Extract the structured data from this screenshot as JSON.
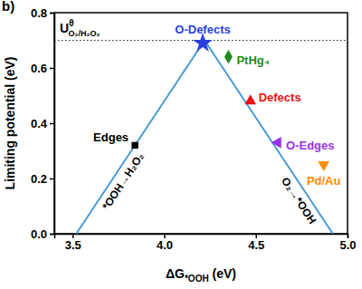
{
  "chart_data": {
    "type": "scatter",
    "panel_label": "b)",
    "x_label": [
      {
        "text": "ΔG"
      },
      {
        "text": "*OOH",
        "sub": true
      },
      {
        "text": " (eV)"
      }
    ],
    "y_label": "Limiting potential (eV)",
    "xlim": [
      3.4,
      5.0
    ],
    "ylim": [
      0,
      0.8
    ],
    "xticks": [
      3.5,
      {
        "value": 4,
        "label": "4.0"
      },
      4.5,
      {
        "value": 5,
        "label": "5.0"
      }
    ],
    "yticks": [
      {
        "value": 0,
        "label": "0.0"
      },
      0.2,
      0.4,
      0.6,
      0.8
    ],
    "hline": {
      "value": 0.7,
      "line_style": "dotted",
      "color": "#222222",
      "label": [
        {
          "text": "U"
        },
        {
          "text": "θ",
          "sup": true
        },
        {
          "text": "O₂/H₂O₂",
          "sub": true
        }
      ]
    },
    "series": [
      {
        "type": "line",
        "color": "#4a9bd4",
        "x": [
          3.52,
          4.22,
          4.92
        ],
        "values": [
          0,
          0.7,
          0
        ],
        "segment_labels": [
          "*OOH→H₂O₂",
          "O₂→*OOH"
        ]
      },
      {
        "name": "O-Defects",
        "type": "scatter",
        "color": "#2b3fe0",
        "marker": "star",
        "x": [
          4.21
        ],
        "values": [
          0.69
        ]
      },
      {
        "name": "PtHg₄",
        "type": "scatter",
        "color": "#1e8c1e",
        "marker": "diamond",
        "x": [
          4.35
        ],
        "values": [
          0.64
        ]
      },
      {
        "name": "Defects",
        "type": "scatter",
        "color": "#ee1111",
        "marker": "triangle-up",
        "x": [
          4.47
        ],
        "values": [
          0.48
        ]
      },
      {
        "name": "O-Edges",
        "type": "scatter",
        "color": "#9b30e8",
        "marker": "triangle-left",
        "x": [
          4.62
        ],
        "values": [
          0.33
        ]
      },
      {
        "name": "Pd/Au",
        "type": "scatter",
        "color": "#ff8c00",
        "marker": "triangle-down",
        "x": [
          4.87
        ],
        "values": [
          0.25
        ]
      },
      {
        "name": "Edges",
        "type": "scatter",
        "color": "#000000",
        "marker": "square",
        "x": [
          3.84
        ],
        "values": [
          0.32
        ]
      }
    ]
  }
}
